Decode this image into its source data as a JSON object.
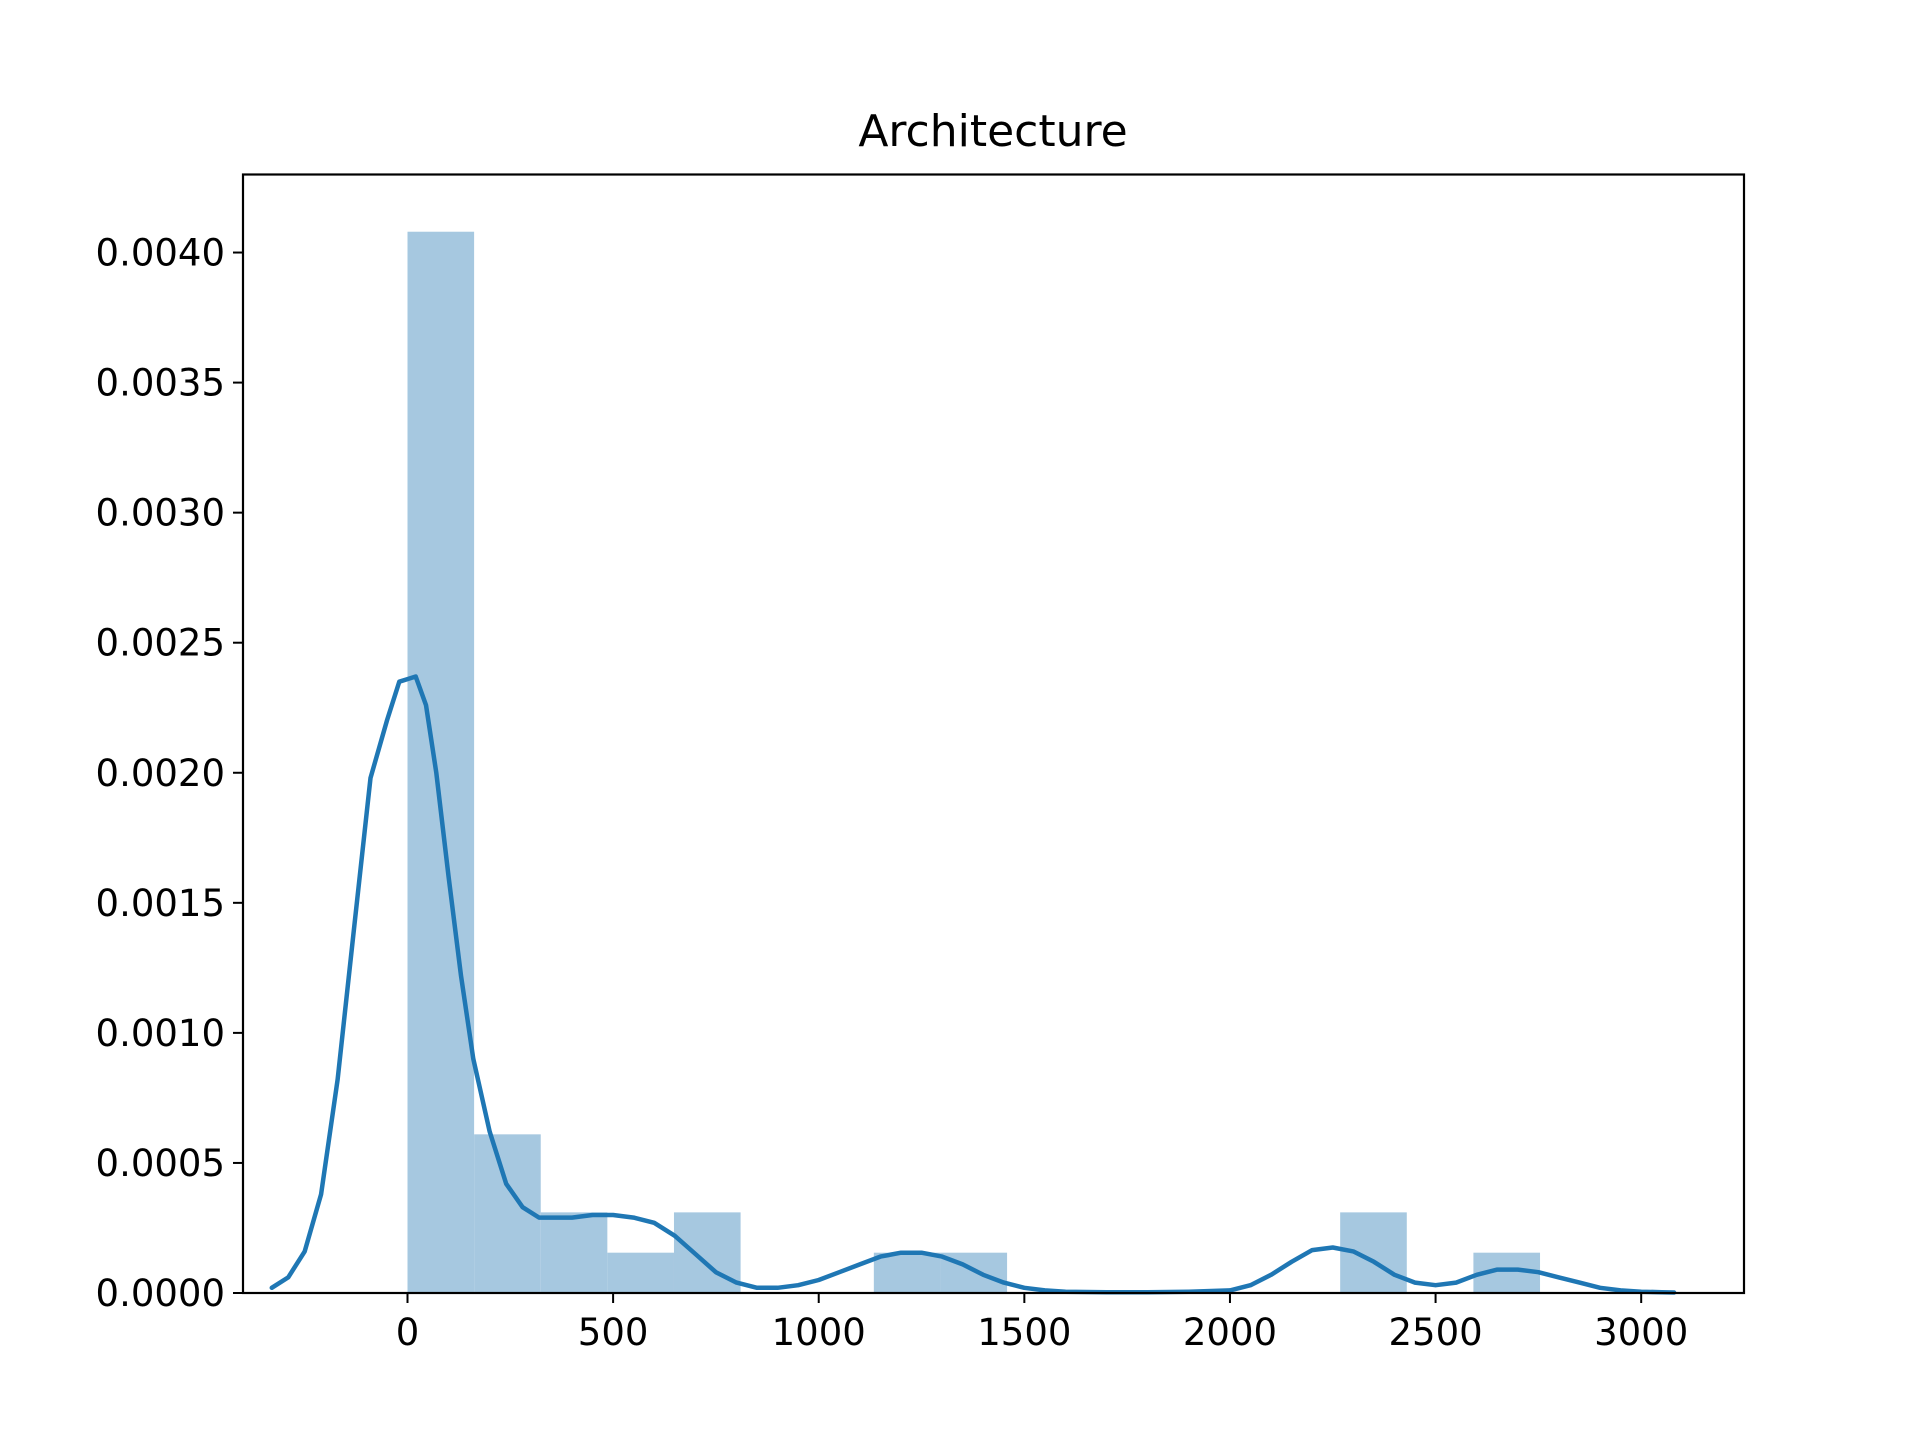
{
  "chart_data": {
    "type": "bar",
    "title": "Architecture",
    "xlabel": "",
    "ylabel": "",
    "xlim": [
      -400,
      3250
    ],
    "ylim": [
      0,
      0.0043
    ],
    "xticks": [
      0,
      500,
      1000,
      1500,
      2000,
      2500,
      3000
    ],
    "xtick_labels": [
      "0",
      "500",
      "1000",
      "1500",
      "2000",
      "2500",
      "3000"
    ],
    "yticks": [
      0,
      0.0005,
      0.001,
      0.0015,
      0.002,
      0.0025,
      0.003,
      0.0035,
      0.004
    ],
    "ytick_labels": [
      "0.0000",
      "0.0005",
      "0.0010",
      "0.0015",
      "0.0020",
      "0.0025",
      "0.0030",
      "0.0035",
      "0.0040"
    ],
    "grid": false,
    "histogram": {
      "bin_edges": [
        0,
        162,
        324,
        486,
        648,
        810,
        972,
        1134,
        1296,
        1458,
        1620,
        1782,
        1944,
        2106,
        2268,
        2430,
        2592,
        2754
      ],
      "density": [
        0.00408,
        0.00061,
        0.00031,
        0.000155,
        0.00031,
        0,
        0,
        0.000155,
        0.000155,
        0,
        0,
        0,
        0,
        0,
        0.00031,
        0,
        0.000155
      ],
      "color": "#a6c8e0"
    },
    "kde": {
      "color": "#1f77b4",
      "x": [
        -330,
        -290,
        -250,
        -210,
        -170,
        -130,
        -90,
        -50,
        -20,
        0,
        20,
        45,
        70,
        100,
        130,
        160,
        200,
        240,
        280,
        320,
        360,
        400,
        450,
        500,
        550,
        600,
        650,
        700,
        750,
        800,
        850,
        900,
        950,
        1000,
        1050,
        1100,
        1150,
        1200,
        1250,
        1300,
        1350,
        1400,
        1450,
        1500,
        1550,
        1600,
        1700,
        1800,
        1900,
        2000,
        2050,
        2100,
        2150,
        2200,
        2250,
        2300,
        2350,
        2400,
        2450,
        2500,
        2550,
        2600,
        2650,
        2700,
        2750,
        2800,
        2850,
        2900,
        2950,
        3000,
        3050,
        3080
      ],
      "y": [
        2e-05,
        6e-05,
        0.00016,
        0.00038,
        0.00082,
        0.0014,
        0.00198,
        0.0022,
        0.00235,
        0.00236,
        0.00237,
        0.00226,
        0.002,
        0.0016,
        0.00122,
        0.0009,
        0.00062,
        0.00042,
        0.00033,
        0.00029,
        0.00029,
        0.00029,
        0.0003,
        0.0003,
        0.00029,
        0.00027,
        0.00022,
        0.00015,
        8e-05,
        4e-05,
        2e-05,
        2e-05,
        3e-05,
        5e-05,
        8e-05,
        0.00011,
        0.00014,
        0.000155,
        0.000155,
        0.00014,
        0.00011,
        7e-05,
        4e-05,
        2e-05,
        1e-05,
        5e-06,
        3e-06,
        3e-06,
        5e-06,
        1e-05,
        3e-05,
        7e-05,
        0.00012,
        0.000165,
        0.000175,
        0.00016,
        0.00012,
        7e-05,
        4e-05,
        3e-05,
        4e-05,
        7e-05,
        9e-05,
        9e-05,
        8e-05,
        6e-05,
        4e-05,
        2e-05,
        1e-05,
        5e-06,
        3e-06,
        2e-06
      ]
    }
  }
}
